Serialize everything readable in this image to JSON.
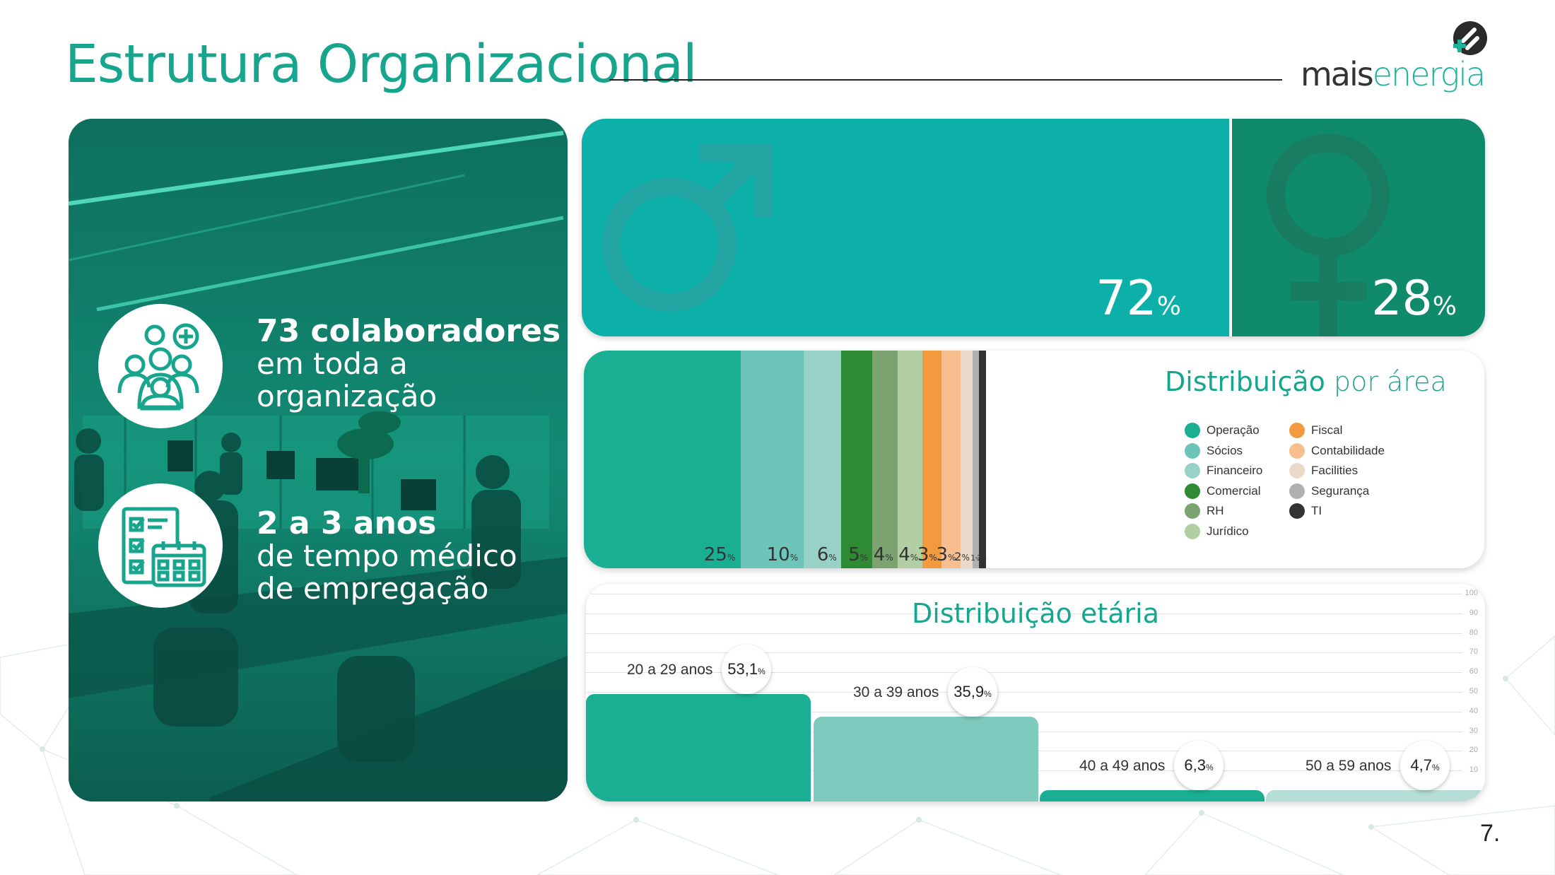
{
  "header": {
    "title": "Estrutura Organizacional",
    "logo_mais": "mais",
    "logo_energia": "energia"
  },
  "stats": [
    {
      "icon": "people-group-icon",
      "bold": "73 colaboradores",
      "line2": "em toda a",
      "line3": "organização"
    },
    {
      "icon": "calendar-checklist-icon",
      "bold": "2 a 3 anos",
      "line2": "de tempo médico",
      "line3": "de empregação"
    }
  ],
  "gender": {
    "male": {
      "icon": "male-symbol-icon",
      "value": 72,
      "num": "72",
      "unit": "%",
      "color": "#0db0a9"
    },
    "female": {
      "icon": "female-symbol-icon",
      "value": 28,
      "num": "28",
      "unit": "%",
      "color": "#0f8a6b"
    }
  },
  "area_distribution": {
    "title_strong": "Distribuição",
    "title_rest": "por área",
    "legend_left": [
      {
        "label": "Operação",
        "color": "#1aaf93"
      },
      {
        "label": "Sócios",
        "color": "#6cc5b8"
      },
      {
        "label": "Financeiro",
        "color": "#98d2c6"
      },
      {
        "label": "Comercial",
        "color": "#2f8a34"
      },
      {
        "label": "RH",
        "color": "#7ba370"
      },
      {
        "label": "Jurídico",
        "color": "#b2cfa4"
      }
    ],
    "legend_right": [
      {
        "label": "Fiscal",
        "color": "#f39a3e"
      },
      {
        "label": "Contabilidade",
        "color": "#f7bf8e"
      },
      {
        "label": "Facilities",
        "color": "#ead9c9"
      },
      {
        "label": "Segurança",
        "color": "#b0b0b0"
      },
      {
        "label": "TI",
        "color": "#333333"
      }
    ]
  },
  "chart_data": [
    {
      "type": "bar",
      "title": "",
      "categories": [
        "Masculino",
        "Feminino"
      ],
      "values": [
        72,
        28
      ]
    },
    {
      "type": "bar",
      "title": "Distribuição por área",
      "categories": [
        "Operação",
        "Sócios",
        "Financeiro",
        "Comercial",
        "RH",
        "Jurídico",
        "Fiscal",
        "Contabilidade",
        "Facilities",
        "Segurança",
        "TI"
      ],
      "values": [
        25,
        10,
        6,
        5,
        4,
        4,
        3,
        3,
        2,
        1,
        1
      ],
      "labels": [
        "25",
        "10",
        "6",
        "5",
        "4",
        "4",
        "3",
        "3",
        "2",
        "1",
        "1"
      ],
      "unit": "%",
      "colors": [
        "#1aaf93",
        "#6cc5b8",
        "#98d2c6",
        "#2f8a34",
        "#7ba370",
        "#b2cfa4",
        "#f39a3e",
        "#f7bf8e",
        "#ead9c9",
        "#b0b0b0",
        "#333333"
      ]
    },
    {
      "type": "bar",
      "title": "Distribuição etária",
      "categories": [
        "20 a 29 anos",
        "30 a 39 anos",
        "40 a 49 anos",
        "50 a 59 anos"
      ],
      "values": [
        53.1,
        35.9,
        6.3,
        4.7
      ],
      "labels": [
        "53,1",
        "35,9",
        "6,3",
        "4,7"
      ],
      "unit": "%",
      "colors": [
        "#1aaf93",
        "#7fcabe",
        "#1aaf93",
        "#b5ddd5"
      ],
      "ylim": [
        0,
        100
      ],
      "yticks": [
        "10",
        "20",
        "30",
        "40",
        "50",
        "60",
        "70",
        "80",
        "90",
        "100"
      ],
      "grid": true
    }
  ],
  "page_number": "7."
}
